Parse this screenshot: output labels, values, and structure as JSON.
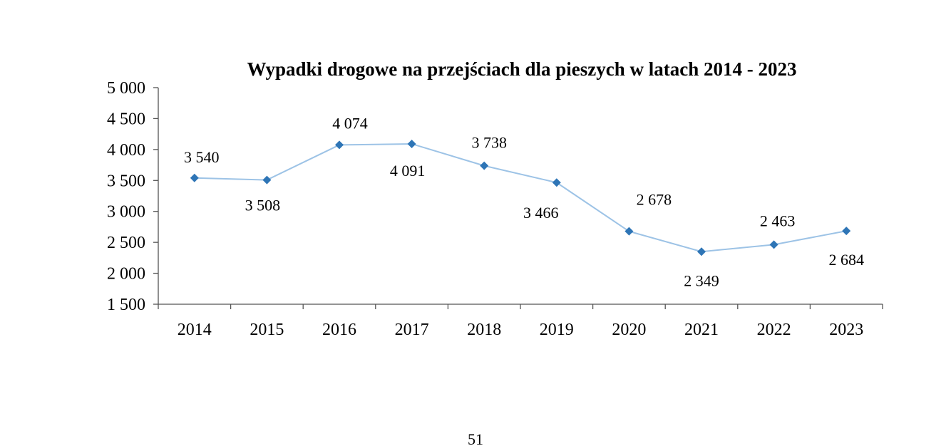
{
  "chart_data": {
    "type": "line",
    "title": "Wypadki drogowe na przejściach dla pieszych w latach 2014 - 2023",
    "xlabel": "",
    "ylabel": "",
    "categories": [
      "2014",
      "2015",
      "2016",
      "2017",
      "2018",
      "2019",
      "2020",
      "2021",
      "2022",
      "2023"
    ],
    "series": [
      {
        "name": "Wypadki",
        "values": [
          3540,
          3508,
          4074,
          4091,
          3738,
          3466,
          2678,
          2349,
          2463,
          2684
        ]
      }
    ],
    "data_labels": [
      "3 540",
      "3 508",
      "4 074",
      "4 091",
      "3 738",
      "3 466",
      "2 678",
      "2 349",
      "2 463",
      "2 684"
    ],
    "ylim": [
      1500,
      5000
    ],
    "yticks": [
      1500,
      2000,
      2500,
      3000,
      3500,
      4000,
      4500,
      5000
    ],
    "ytick_labels": [
      "1 500",
      "2 000",
      "2 500",
      "3 000",
      "3 500",
      "4 000",
      "4 500",
      "5 000"
    ],
    "grid": false,
    "legend": "none",
    "line_color": "#9dc3e6",
    "marker_color": "#2e75b6"
  },
  "page_number": "51"
}
